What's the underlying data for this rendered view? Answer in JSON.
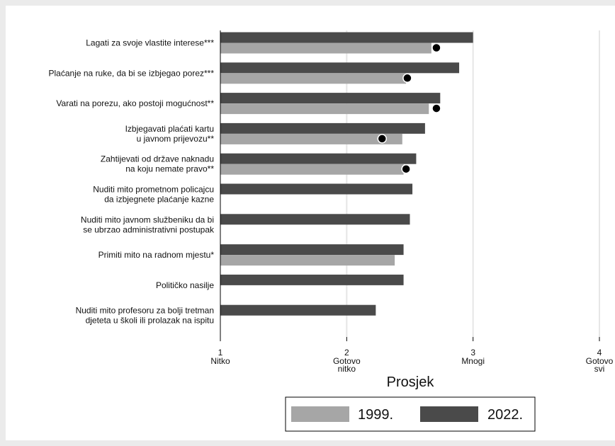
{
  "colors": {
    "outer_background": "#ebebeb",
    "plot_background": "#ffffff",
    "grid": "#e6e6e6",
    "series_1999": "#a6a6a6",
    "series_2022": "#4a4a4a",
    "marker": "#000000"
  },
  "chart_data": {
    "type": "bar",
    "orientation": "horizontal",
    "title": "",
    "xlabel": "Prosjek",
    "xlim": [
      1,
      4
    ],
    "ticks": [
      {
        "value": 1,
        "number": "1",
        "lines": [
          "Nitko"
        ]
      },
      {
        "value": 2,
        "number": "2",
        "lines": [
          "Gotovo",
          "nitko"
        ]
      },
      {
        "value": 3,
        "number": "3",
        "lines": [
          "Mnogi"
        ]
      },
      {
        "value": 4,
        "number": "4",
        "lines": [
          "Gotovo",
          "svi"
        ]
      }
    ],
    "grid": true,
    "legend_position": "bottom-center",
    "categories": [
      {
        "lines": [
          "Lagati za svoje vlastite interese***"
        ]
      },
      {
        "lines": [
          "Plaćanje na ruke, da bi se izbjegao porez***"
        ]
      },
      {
        "lines": [
          "Varati na porezu, ako postoji mogućnost**"
        ]
      },
      {
        "lines": [
          "Izbjegavati plaćati kartu",
          "u javnom prijevozu**"
        ]
      },
      {
        "lines": [
          "Zahtijevati od države naknadu",
          "na koju nemate pravo**"
        ]
      },
      {
        "lines": [
          "Nuditi mito prometnom policajcu",
          "da izbjegnete plaćanje kazne"
        ]
      },
      {
        "lines": [
          "Nuditi mito javnom službeniku da bi",
          "se ubrzao administrativni postupak"
        ]
      },
      {
        "lines": [
          "Primiti mito na radnom mjestu*"
        ]
      },
      {
        "lines": [
          "Političko nasilje"
        ]
      },
      {
        "lines": [
          "Nuditi mito profesoru za bolji tretman",
          "djeteta u školi ili prolazak na ispitu"
        ]
      }
    ],
    "series": [
      {
        "name": "2022.",
        "values": [
          3.0,
          2.89,
          2.74,
          2.62,
          2.55,
          2.52,
          2.5,
          2.45,
          2.45,
          2.23
        ]
      },
      {
        "name": "1999.",
        "values": [
          2.67,
          2.47,
          2.65,
          2.44,
          2.45,
          null,
          null,
          2.38,
          null,
          null
        ]
      }
    ],
    "markers": [
      2.71,
      2.48,
      2.71,
      2.28,
      2.47,
      null,
      null,
      null,
      null,
      null
    ]
  }
}
